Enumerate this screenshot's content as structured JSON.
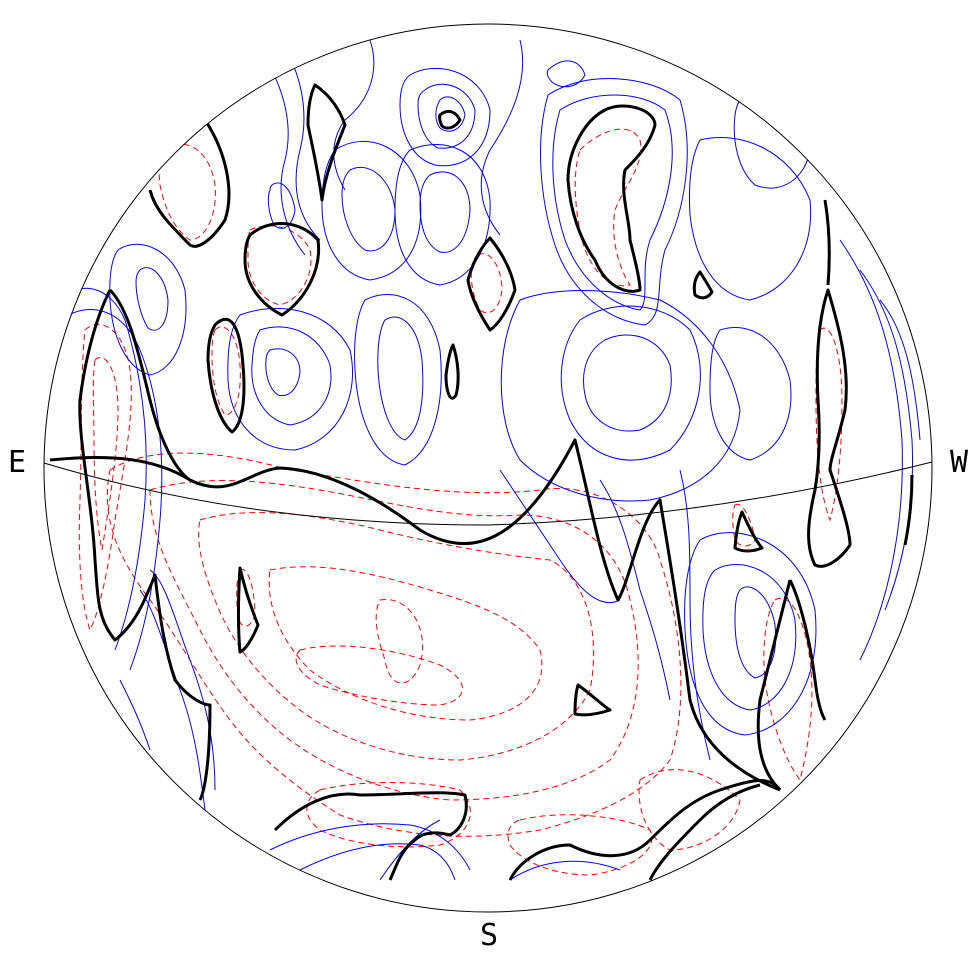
{
  "figure": {
    "type": "stereographic contour plot",
    "background": "#ffffff",
    "labels": {
      "east": "E",
      "west": "W",
      "south": "S"
    },
    "colors": {
      "outline": "#000000",
      "zero_contour": "#000000",
      "positive_contour": "#0000ff",
      "negative_contour": "#ff0000"
    },
    "line_styles": {
      "positive_contour": "solid",
      "negative_contour": "dashed",
      "zero_contour": "solid-thick"
    }
  }
}
